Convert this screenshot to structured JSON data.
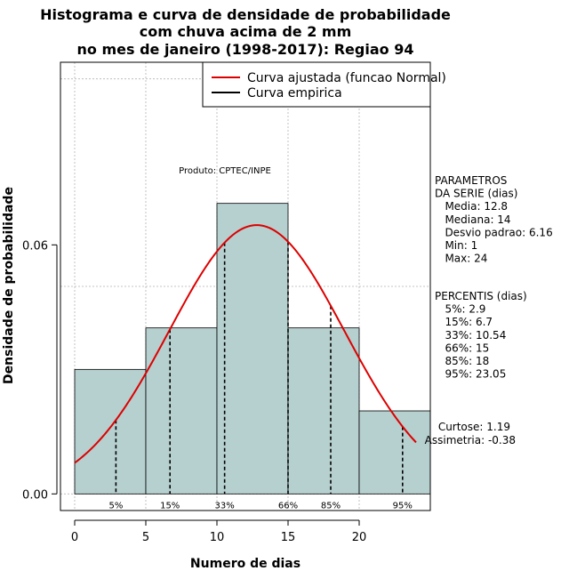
{
  "chart_data": {
    "type": "bar",
    "title": [
      "Histograma e curva de densidade de probabilidade",
      "com chuva acima de 2 mm",
      "no mes de janeiro (1998-2017): Regiao 94"
    ],
    "xlabel": "Numero de dias",
    "ylabel": "Densidade de probabilidade",
    "xlim": [
      -1,
      25
    ],
    "ylim": [
      -0.004,
      0.104
    ],
    "x_ticks": [
      0,
      5,
      10,
      15,
      20
    ],
    "y_ticks": [
      0.0,
      0.06
    ],
    "y_tick_labels": [
      "0.00",
      "0.06"
    ],
    "grid": true,
    "bins": [
      {
        "x0": 0,
        "x1": 5,
        "density": 0.03
      },
      {
        "x0": 5,
        "x1": 10,
        "density": 0.04
      },
      {
        "x0": 10,
        "x1": 15,
        "density": 0.07
      },
      {
        "x0": 15,
        "x1": 20,
        "density": 0.04
      },
      {
        "x0": 20,
        "x1": 25,
        "density": 0.02
      }
    ],
    "series": [
      {
        "name": "Curva ajustada (funcao Normal)",
        "kind": "normal_fit",
        "mean": 12.8,
        "sd": 6.16,
        "x_range": [
          0,
          24
        ],
        "color": "#dd0000"
      }
    ],
    "legend": {
      "position": "top-right",
      "entries": [
        {
          "label": "Curva ajustada (funcao Normal)",
          "color": "#dd0000"
        },
        {
          "label": "Curva empirica",
          "color": "#000000"
        }
      ]
    },
    "percentile_markers": [
      {
        "x": 2.9,
        "label": "5%"
      },
      {
        "x": 6.7,
        "label": "15%"
      },
      {
        "x": 10.54,
        "label": "33%"
      },
      {
        "x": 15,
        "label": "66%"
      },
      {
        "x": 18,
        "label": "85%"
      },
      {
        "x": 23.05,
        "label": "95%"
      }
    ],
    "product_label": "Produto: CPTEC/INPE",
    "parameters_lines": [
      "PARAMETROS",
      "DA SERIE (dias)",
      "   Media: 12.8",
      "   Mediana: 14",
      "   Desvio padrao: 6.16",
      "   Min: 1",
      "   Max: 24"
    ],
    "percentis_lines": [
      "PERCENTIS (dias)",
      "   5%: 2.9",
      "   15%: 6.7",
      "   33%: 10.54",
      "   66%: 15",
      "   85%: 18",
      "   95%: 23.05"
    ],
    "stats_lines": [
      "Curtose: 1.19",
      "Assimetria: -0.38"
    ],
    "colors": {
      "bar_fill": "#b6cfcf",
      "curve": "#dd0000",
      "grid": "#b4b4b4"
    }
  }
}
